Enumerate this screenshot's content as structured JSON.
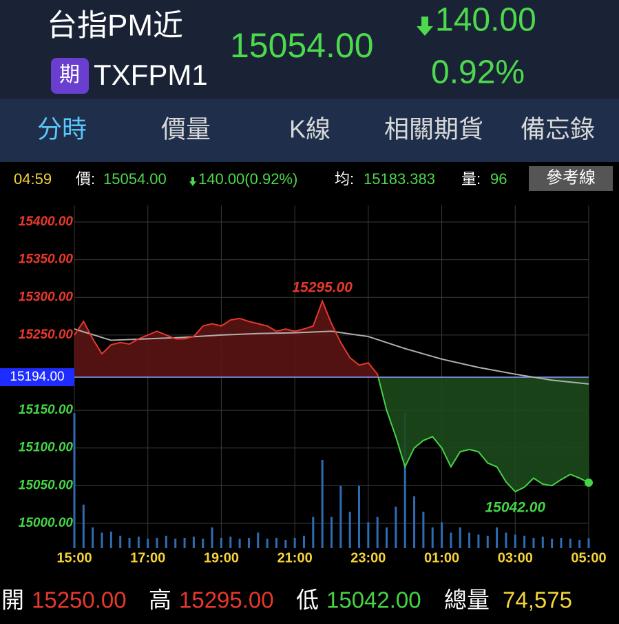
{
  "header": {
    "name": "台指PM近",
    "badge": "期",
    "symbol": "TXFPM1",
    "price": "15054.00",
    "change": "140.00",
    "change_pct": "0.92%"
  },
  "tabs": [
    "分時",
    "價量",
    "K線",
    "相關期貨",
    "備忘錄"
  ],
  "info": {
    "time": "04:59",
    "price_label": "價:",
    "price": "15054.00",
    "change": "140.00(0.92%)",
    "avg_label": "均:",
    "avg": "15183.383",
    "vol_label": "量:",
    "vol": "96",
    "button": "參考線"
  },
  "chart_data": {
    "type": "line",
    "xlim": [
      0,
      840
    ],
    "xticks": [
      {
        "value": 0,
        "label": "15:00"
      },
      {
        "value": 120,
        "label": "17:00"
      },
      {
        "value": 240,
        "label": "19:00"
      },
      {
        "value": 360,
        "label": "21:00"
      },
      {
        "value": 480,
        "label": "23:00"
      },
      {
        "value": 600,
        "label": "01:00"
      },
      {
        "value": 720,
        "label": "03:00"
      },
      {
        "value": 840,
        "label": "05:00"
      }
    ],
    "ylim": [
      14967,
      15422
    ],
    "yticks": [
      {
        "value": 15000,
        "label": "15000.00"
      },
      {
        "value": 15050,
        "label": "15050.00"
      },
      {
        "value": 15100,
        "label": "15100.00"
      },
      {
        "value": 15150,
        "label": "15150.00"
      },
      {
        "value": 15250,
        "label": "15250.00"
      },
      {
        "value": 15300,
        "label": "15300.00"
      },
      {
        "value": 15350,
        "label": "15350.00"
      },
      {
        "value": 15400,
        "label": "15400.00"
      }
    ],
    "reference": {
      "value": 15194,
      "label": "15194.00"
    },
    "grid": true,
    "price": {
      "color_up": "#e8382c",
      "color_down": "#45d445",
      "fill_up": "#5c1414",
      "fill_down": "#1c4a1c",
      "x": [
        0,
        15,
        30,
        45,
        60,
        75,
        90,
        105,
        120,
        135,
        150,
        165,
        180,
        195,
        210,
        225,
        240,
        255,
        270,
        285,
        300,
        315,
        330,
        345,
        360,
        375,
        390,
        405,
        420,
        435,
        450,
        465,
        480,
        495,
        510,
        525,
        540,
        555,
        570,
        585,
        600,
        615,
        630,
        645,
        660,
        675,
        690,
        705,
        720,
        735,
        750,
        765,
        780,
        795,
        810,
        825,
        840
      ],
      "values": [
        15250,
        15268,
        15245,
        15225,
        15237,
        15240,
        15238,
        15245,
        15250,
        15255,
        15250,
        15245,
        15245,
        15248,
        15262,
        15265,
        15262,
        15270,
        15272,
        15268,
        15265,
        15262,
        15255,
        15258,
        15255,
        15258,
        15262,
        15295,
        15265,
        15240,
        15220,
        15210,
        15213,
        15198,
        15150,
        15115,
        15075,
        15100,
        15110,
        15115,
        15100,
        15075,
        15095,
        15098,
        15095,
        15080,
        15075,
        15055,
        15042,
        15048,
        15060,
        15052,
        15050,
        15058,
        15065,
        15060,
        15054
      ]
    },
    "average": {
      "color": "#b0b0b0",
      "x": [
        0,
        60,
        120,
        180,
        240,
        300,
        360,
        420,
        480,
        540,
        600,
        660,
        720,
        780,
        840
      ],
      "values": [
        15258,
        15243,
        15245,
        15247,
        15250,
        15252,
        15253,
        15255,
        15248,
        15232,
        15218,
        15207,
        15198,
        15190,
        15185
      ]
    },
    "volume": {
      "color": "#2e6db4",
      "ylim": [
        0,
        3300
      ],
      "x": [
        0,
        15,
        30,
        45,
        60,
        75,
        90,
        105,
        120,
        135,
        150,
        165,
        180,
        195,
        210,
        225,
        240,
        255,
        270,
        285,
        300,
        315,
        330,
        345,
        360,
        375,
        390,
        405,
        420,
        435,
        450,
        465,
        480,
        495,
        510,
        525,
        540,
        555,
        570,
        585,
        600,
        615,
        630,
        645,
        660,
        675,
        690,
        705,
        720,
        735,
        750,
        765,
        780,
        795,
        810,
        825,
        840
      ],
      "values": [
        1300,
        420,
        200,
        150,
        160,
        120,
        100,
        110,
        90,
        100,
        120,
        90,
        100,
        110,
        90,
        200,
        100,
        110,
        90,
        100,
        150,
        90,
        100,
        80,
        100,
        120,
        300,
        850,
        300,
        600,
        350,
        600,
        250,
        300,
        200,
        400,
        1300,
        500,
        350,
        200,
        250,
        150,
        200,
        150,
        130,
        120,
        200,
        150,
        130,
        120,
        100,
        110,
        90,
        100,
        90,
        80,
        96
      ]
    },
    "annotations": [
      {
        "x": 405,
        "value": 15295,
        "label": "15295.00"
      },
      {
        "x": 720,
        "value": 15042,
        "label": "15042.00"
      }
    ]
  },
  "footer": {
    "open_label": "開",
    "open": "15250.00",
    "high_label": "高",
    "high": "15295.00",
    "low_label": "低",
    "low": "15042.00",
    "vol_label": "總量",
    "vol": "74,575"
  }
}
